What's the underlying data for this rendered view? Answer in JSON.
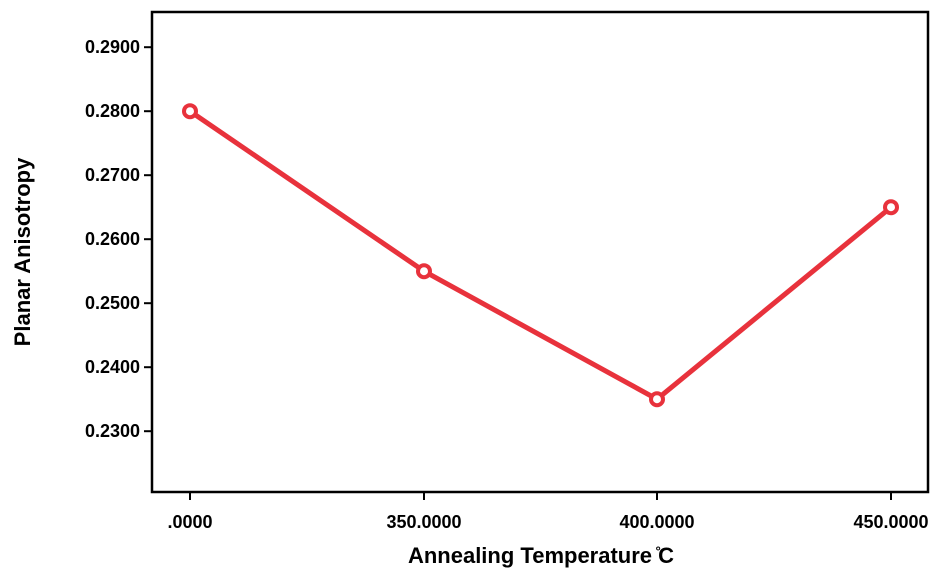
{
  "chart_data": {
    "type": "line",
    "categories": [
      ".0000",
      "350.0000",
      "400.0000",
      "450.0000"
    ],
    "series": [
      {
        "values": [
          0.28,
          0.255,
          0.235,
          0.265
        ],
        "color": "#e8323c"
      }
    ],
    "xlabel": "Annealing Temperature ̊C",
    "ylabel": "Planar Anisotropy",
    "y_ticks": [
      "0.2300",
      "0.2400",
      "0.2500",
      "0.2600",
      "0.2700",
      "0.2800",
      "0.2900"
    ],
    "ylim": [
      0.2205,
      0.2955
    ],
    "grid": false,
    "legend": "none"
  }
}
